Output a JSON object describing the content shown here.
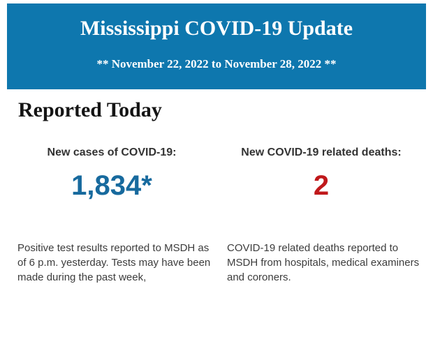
{
  "colors": {
    "banner_bg": "#0e77ae",
    "banner_text": "#ffffff",
    "heading_text": "#141414",
    "label_text": "#333333",
    "cases_value": "#176a9e",
    "deaths_value": "#c0181b",
    "body_text": "#3c3c3c"
  },
  "banner": {
    "title": "Mississippi COVID-19 Update",
    "date_range": "** November 22, 2022 to November 28, 2022 **"
  },
  "main": {
    "heading": "Reported Today",
    "stats": [
      {
        "label": "New cases of COVID-19:",
        "value": "1,834*",
        "description": "Positive test results reported to MSDH as of 6 p.m. yesterday. Tests may have been made during the past week,"
      },
      {
        "label": "New COVID-19 related deaths:",
        "value": "2",
        "description": "COVID-19 related deaths reported to MSDH from hospitals, medical examiners and coroners."
      }
    ]
  }
}
